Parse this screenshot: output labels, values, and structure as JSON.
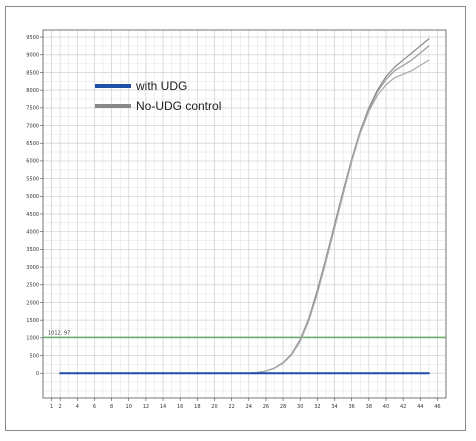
{
  "chart_data": {
    "type": "line",
    "title": "",
    "xlabel": "",
    "ylabel": "",
    "xlim": [
      0,
      47
    ],
    "ylim": [
      -700,
      9700
    ],
    "x_ticks": [
      1,
      2,
      4,
      6,
      8,
      10,
      12,
      14,
      16,
      18,
      20,
      22,
      24,
      26,
      28,
      30,
      32,
      34,
      36,
      38,
      40,
      42,
      44,
      46
    ],
    "x_tick_labels": [
      "1",
      "2",
      "4",
      "6",
      "8",
      "10",
      "12",
      "14",
      "16",
      "18",
      "20",
      "22",
      "24",
      "26",
      "28",
      "30",
      "32",
      "34",
      "36",
      "38",
      "40",
      "42",
      "44",
      "46"
    ],
    "y_ticks": [
      0,
      500,
      1000,
      1500,
      2000,
      2500,
      3000,
      3500,
      4000,
      4500,
      5000,
      5500,
      6000,
      6500,
      7000,
      7500,
      8000,
      8500,
      9000,
      9500
    ],
    "y_tick_labels": [
      "0",
      "500",
      "1000",
      "1500",
      "2000",
      "2500",
      "3000",
      "3500",
      "4000",
      "4500",
      "5000",
      "5500",
      "6000",
      "6500",
      "7000",
      "7500",
      "8000",
      "8500",
      "9000",
      "9500"
    ],
    "grid": true,
    "legend": "top-left",
    "threshold": {
      "value": 1012.97,
      "label": "1012. 97",
      "color": "#6aaa6a"
    },
    "series": [
      {
        "name": "with UDG",
        "color": "#1f4fa8",
        "x": [
          2,
          6,
          10,
          14,
          18,
          22,
          26,
          30,
          34,
          38,
          42,
          45
        ],
        "y": [
          0,
          0,
          0,
          0,
          0,
          0,
          0,
          0,
          0,
          0,
          0,
          0
        ]
      },
      {
        "name": "No-UDG control",
        "color": "#888888",
        "x": [
          24,
          25,
          26,
          27,
          28,
          29,
          30,
          31,
          32,
          33,
          34,
          35,
          36,
          37,
          38,
          39,
          40,
          41,
          42,
          43,
          44,
          45
        ],
        "y": [
          0,
          20,
          60,
          150,
          300,
          550,
          950,
          1550,
          2350,
          3250,
          4200,
          5150,
          6050,
          6850,
          7500,
          8000,
          8380,
          8650,
          8850,
          9050,
          9250,
          9450
        ]
      },
      {
        "name": "",
        "color": "#999999",
        "x": [
          24,
          25,
          26,
          27,
          28,
          29,
          30,
          31,
          32,
          33,
          34,
          35,
          36,
          37,
          38,
          39,
          40,
          41,
          42,
          43,
          44,
          45
        ],
        "y": [
          0,
          20,
          60,
          140,
          290,
          530,
          920,
          1500,
          2280,
          3180,
          4120,
          5080,
          6000,
          6800,
          7450,
          7950,
          8300,
          8550,
          8700,
          8850,
          9050,
          9250
        ]
      },
      {
        "name": "",
        "color": "#aaaaaa",
        "x": [
          24,
          25,
          26,
          27,
          28,
          29,
          30,
          31,
          32,
          33,
          34,
          35,
          36,
          37,
          38,
          39,
          40,
          41,
          42,
          43,
          44,
          45
        ],
        "y": [
          0,
          20,
          60,
          140,
          280,
          520,
          900,
          1480,
          2250,
          3150,
          4100,
          5050,
          5980,
          6780,
          7400,
          7850,
          8150,
          8350,
          8450,
          8550,
          8700,
          8850
        ]
      }
    ]
  }
}
